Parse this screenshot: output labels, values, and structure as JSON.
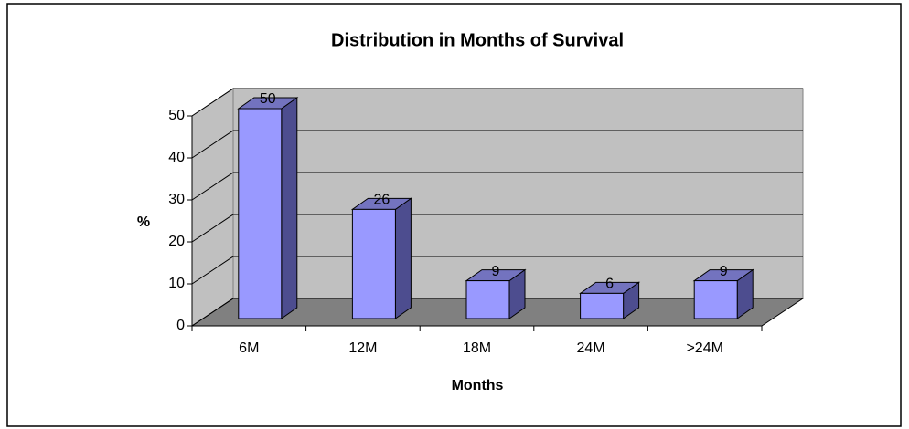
{
  "chart_data": {
    "type": "bar",
    "title": "Distribution in Months of Survival",
    "categories": [
      "6M",
      "12M",
      "18M",
      "24M",
      ">24M"
    ],
    "values": [
      50,
      26,
      9,
      6,
      9
    ],
    "x_label": "Months",
    "y_label": "%",
    "ylim": [
      0,
      50
    ],
    "yticks": [
      0,
      10,
      20,
      30,
      40,
      50
    ],
    "grid": true,
    "color": "#9999ff"
  }
}
